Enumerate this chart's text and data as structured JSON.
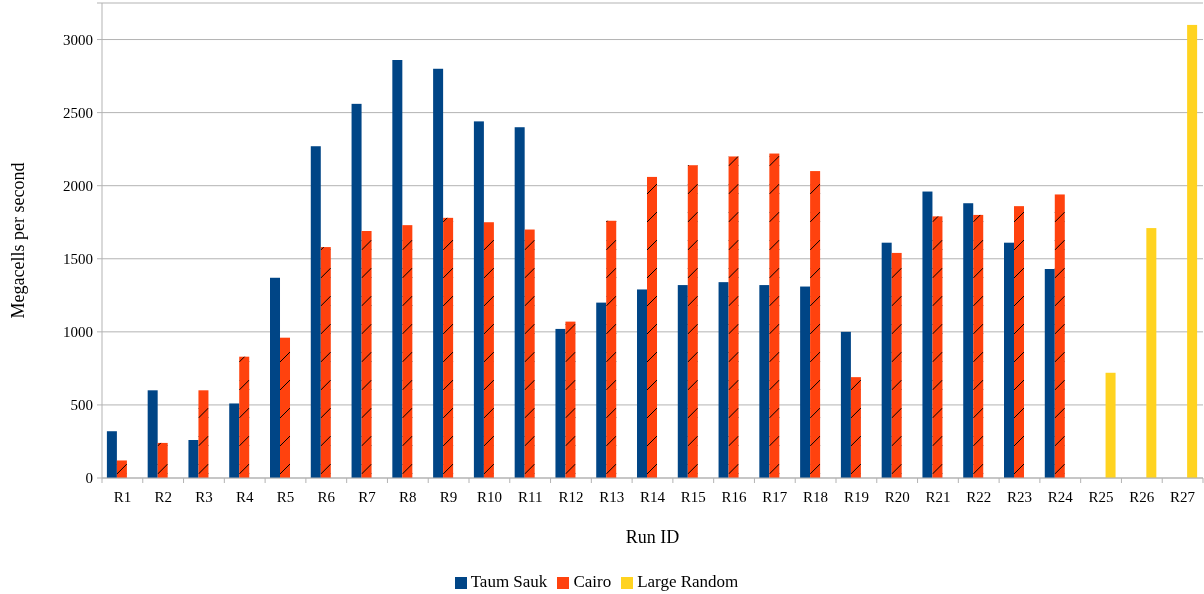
{
  "chart_data": {
    "type": "bar",
    "xlabel": "Run ID",
    "ylabel": "Megacells per second",
    "categories": [
      "R1",
      "R2",
      "R3",
      "R4",
      "R5",
      "R6",
      "R7",
      "R8",
      "R9",
      "R10",
      "R11",
      "R12",
      "R13",
      "R14",
      "R15",
      "R16",
      "R17",
      "R18",
      "R19",
      "R20",
      "R21",
      "R22",
      "R23",
      "R24",
      "R25",
      "R26",
      "R27"
    ],
    "series": [
      {
        "name": "Taum Sauk",
        "color": "#004586",
        "values": [
          320,
          600,
          260,
          510,
          1370,
          2270,
          2560,
          2860,
          2800,
          2440,
          2400,
          1020,
          1200,
          1290,
          1320,
          1340,
          1320,
          1310,
          1000,
          1610,
          1960,
          1880,
          1610,
          1430,
          null,
          null,
          null
        ]
      },
      {
        "name": "Cairo",
        "color": "#ff420e",
        "values": [
          120,
          240,
          600,
          830,
          960,
          1580,
          1690,
          1730,
          1780,
          1750,
          1700,
          1070,
          1760,
          2060,
          2140,
          2200,
          2220,
          2100,
          690,
          1540,
          1790,
          1800,
          1860,
          1940,
          null,
          null,
          null
        ]
      },
      {
        "name": "Large Random",
        "color": "#ffd320",
        "values": [
          null,
          null,
          null,
          null,
          null,
          null,
          null,
          null,
          null,
          null,
          null,
          null,
          null,
          null,
          null,
          null,
          null,
          null,
          null,
          null,
          null,
          null,
          null,
          null,
          720,
          1710,
          3100
        ]
      }
    ],
    "ylim": [
      0,
      3250
    ],
    "yticks": [
      0,
      500,
      1000,
      1500,
      2000,
      2500,
      3000,
      {
        "value": 3250,
        "label": null
      }
    ],
    "grid": "y",
    "legend": "bottom"
  }
}
